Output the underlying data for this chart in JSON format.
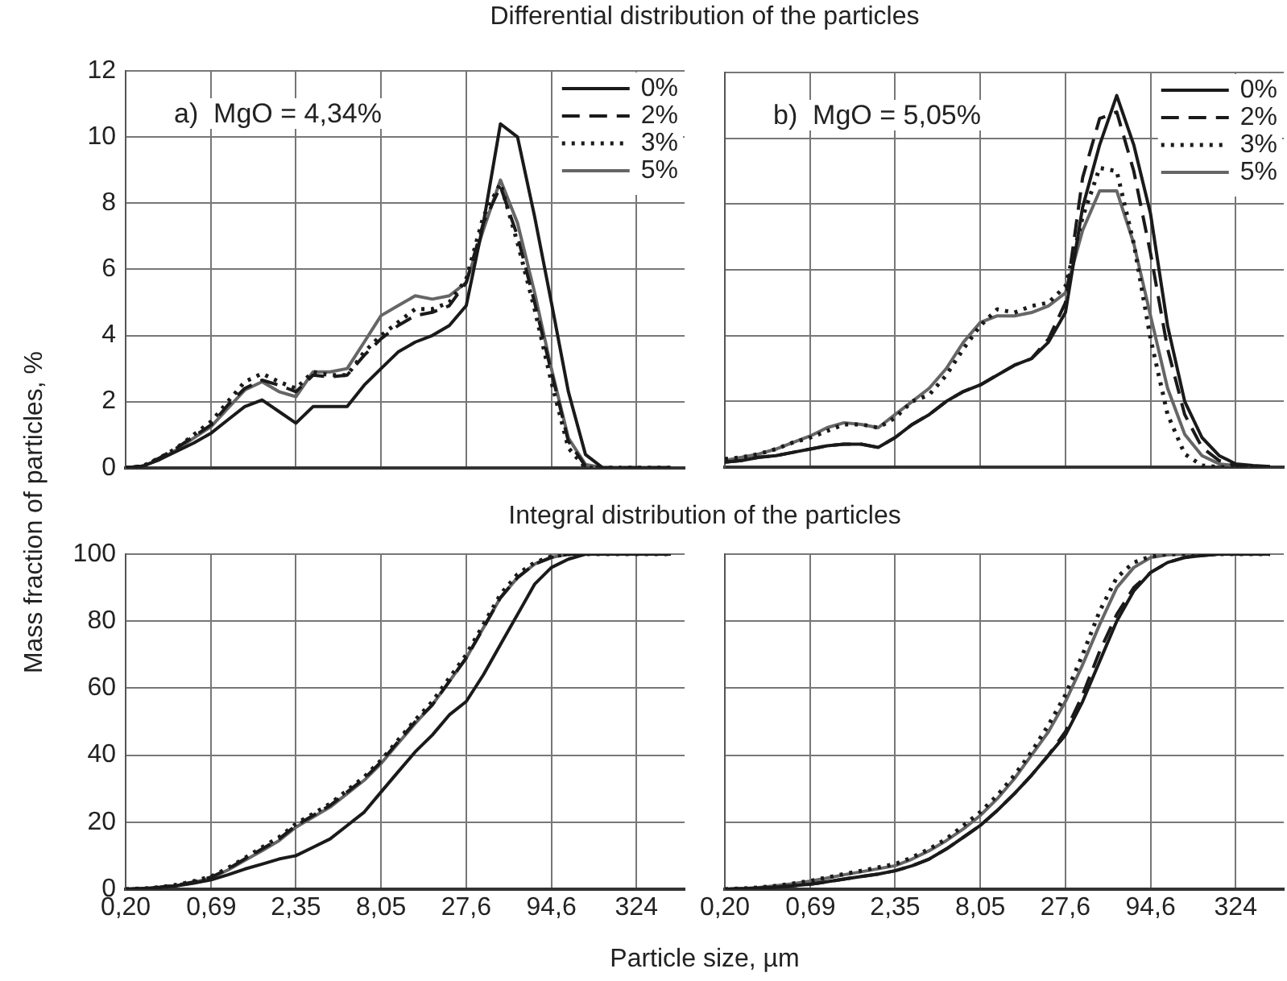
{
  "chart_data": [
    {
      "type": "line",
      "title": "Differential distribution of the particles",
      "ylabel": "Mass fraction of particles, %",
      "annotations": [
        "a)  MgO = 4,34%"
      ],
      "log": "x",
      "grid": true,
      "legend": "top right",
      "tick_labels": "y",
      "marker": "none",
      "x": [
        0.2,
        0.256,
        0.327,
        0.419,
        0.536,
        0.69,
        0.878,
        1.12,
        1.44,
        1.84,
        2.35,
        3.01,
        3.85,
        4.93,
        6.31,
        8.05,
        10.3,
        13.2,
        16.9,
        21.6,
        27.6,
        35.4,
        45.3,
        58,
        74.2,
        94.6,
        121,
        155,
        199,
        255,
        324,
        417,
        533
      ],
      "xlim": [
        0.2,
        650
      ],
      "ylim": [
        0,
        12
      ],
      "yticks": [
        0,
        2,
        4,
        6,
        8,
        10,
        12
      ],
      "series": [
        {
          "name": "0%",
          "color": "#1a1a1a",
          "line_style": "solid",
          "values": [
            0,
            0.05,
            0.25,
            0.5,
            0.75,
            1.05,
            1.45,
            1.85,
            2.05,
            1.7,
            1.35,
            1.85,
            1.85,
            1.85,
            2.5,
            3.0,
            3.5,
            3.8,
            4.0,
            4.3,
            4.9,
            7.4,
            10.4,
            10.0,
            7.6,
            5.0,
            2.3,
            0.4,
            0,
            0,
            0,
            0,
            0
          ]
        },
        {
          "name": "2%",
          "color": "#1a1a1a",
          "line_style": "dashed",
          "values": [
            0,
            0.05,
            0.3,
            0.6,
            0.95,
            1.3,
            1.9,
            2.4,
            2.65,
            2.5,
            2.3,
            2.8,
            2.75,
            2.8,
            3.4,
            3.9,
            4.3,
            4.6,
            4.7,
            4.9,
            5.6,
            7.4,
            8.5,
            7.0,
            5.0,
            2.9,
            0.8,
            0.05,
            0,
            0,
            0,
            0,
            0
          ]
        },
        {
          "name": "3%",
          "color": "#1a1a1a",
          "line_style": "dotted",
          "values": [
            0,
            0.05,
            0.3,
            0.6,
            1.0,
            1.4,
            2.0,
            2.6,
            2.85,
            2.6,
            2.4,
            2.9,
            2.8,
            2.8,
            3.5,
            4.0,
            4.4,
            4.8,
            4.8,
            5.0,
            5.7,
            7.6,
            8.6,
            6.8,
            4.8,
            2.6,
            0.6,
            0,
            0,
            0,
            0,
            0,
            0
          ]
        },
        {
          "name": "5%",
          "color": "#666666",
          "line_style": "solid",
          "values": [
            0,
            0.05,
            0.25,
            0.55,
            0.9,
            1.25,
            1.8,
            2.35,
            2.6,
            2.3,
            2.15,
            2.9,
            2.9,
            3.0,
            3.8,
            4.6,
            4.9,
            5.2,
            5.1,
            5.2,
            5.6,
            7.2,
            8.7,
            7.4,
            5.3,
            3.0,
            0.9,
            0.1,
            0,
            0,
            0,
            0,
            0
          ]
        }
      ]
    },
    {
      "type": "line",
      "annotations": [
        "b)  MgO = 5,05%"
      ],
      "log": "x",
      "grid": true,
      "legend": "top right",
      "tick_labels": false,
      "marker": "none",
      "x": [
        0.2,
        0.256,
        0.327,
        0.419,
        0.536,
        0.69,
        0.878,
        1.12,
        1.44,
        1.84,
        2.35,
        3.01,
        3.85,
        4.93,
        6.31,
        8.05,
        10.3,
        13.2,
        16.9,
        21.6,
        27.6,
        35.4,
        45.3,
        58,
        74.2,
        94.6,
        121,
        155,
        199,
        255,
        324,
        417,
        533
      ],
      "xlim": [
        0.2,
        650
      ],
      "ylim": [
        0,
        12
      ],
      "yticks": [
        0,
        2,
        4,
        6,
        8,
        10,
        12
      ],
      "series": [
        {
          "name": "0%",
          "color": "#1a1a1a",
          "line_style": "solid",
          "values": [
            0.15,
            0.2,
            0.3,
            0.35,
            0.45,
            0.55,
            0.65,
            0.7,
            0.7,
            0.6,
            0.9,
            1.3,
            1.6,
            2.0,
            2.3,
            2.5,
            2.8,
            3.1,
            3.3,
            3.8,
            4.7,
            7.9,
            9.8,
            11.3,
            9.8,
            7.7,
            4.3,
            2.0,
            0.9,
            0.35,
            0.1,
            0.05,
            0.02
          ]
        },
        {
          "name": "2%",
          "color": "#1a1a1a",
          "line_style": "dashed",
          "values": [
            0.15,
            0.2,
            0.3,
            0.35,
            0.45,
            0.55,
            0.65,
            0.7,
            0.7,
            0.6,
            0.9,
            1.3,
            1.6,
            2.0,
            2.3,
            2.5,
            2.8,
            3.1,
            3.3,
            3.9,
            5.0,
            8.8,
            10.6,
            10.8,
            9.0,
            6.5,
            3.6,
            1.6,
            0.6,
            0.2,
            0.05,
            0,
            0
          ]
        },
        {
          "name": "3%",
          "color": "#1a1a1a",
          "line_style": "dotted",
          "values": [
            0.25,
            0.3,
            0.4,
            0.55,
            0.75,
            0.9,
            1.1,
            1.3,
            1.3,
            1.2,
            1.5,
            2.0,
            2.2,
            2.8,
            3.6,
            4.3,
            4.8,
            4.7,
            4.9,
            5.0,
            5.5,
            7.6,
            9.1,
            9.0,
            6.8,
            3.9,
            1.6,
            0.4,
            0.05,
            0,
            0,
            0,
            0
          ]
        },
        {
          "name": "5%",
          "color": "#666666",
          "line_style": "solid",
          "values": [
            0.2,
            0.3,
            0.4,
            0.55,
            0.75,
            0.95,
            1.2,
            1.35,
            1.3,
            1.2,
            1.6,
            2.0,
            2.4,
            3.0,
            3.8,
            4.4,
            4.6,
            4.6,
            4.7,
            4.9,
            5.3,
            7.2,
            8.4,
            8.4,
            6.8,
            4.6,
            2.4,
            1.0,
            0.35,
            0.1,
            0.05,
            0,
            0
          ]
        }
      ]
    },
    {
      "type": "line",
      "title": "Integral distribution of the particles",
      "xlabel": "Particle size, µm",
      "log": "x",
      "grid": true,
      "marker": "none",
      "x": [
        0.2,
        0.256,
        0.327,
        0.419,
        0.536,
        0.69,
        0.878,
        1.12,
        1.44,
        1.84,
        2.35,
        3.01,
        3.85,
        4.93,
        6.31,
        8.05,
        10.3,
        13.2,
        16.9,
        21.6,
        27.6,
        35.4,
        45.3,
        58,
        74.2,
        94.6,
        121,
        155,
        199,
        255,
        324,
        417,
        533
      ],
      "xlim": [
        0.2,
        650
      ],
      "xticks": [
        {
          "value": 0.2,
          "label": "0,20"
        },
        {
          "value": 0.69,
          "label": "0,69"
        },
        {
          "value": 2.35,
          "label": "2,35"
        },
        {
          "value": 8.05,
          "label": "8,05"
        },
        {
          "value": 27.6,
          "label": "27,6"
        },
        {
          "value": 94.6,
          "label": "94,6"
        },
        {
          "value": 324,
          "label": "324"
        }
      ],
      "ylim": [
        0,
        100
      ],
      "yticks": [
        0,
        20,
        40,
        60,
        80,
        100
      ],
      "series": [
        {
          "color": "#1a1a1a",
          "line_style": "solid",
          "values": [
            0,
            0.2,
            0.5,
            1.0,
            1.8,
            2.8,
            4.3,
            6.0,
            7.5,
            9.0,
            10,
            12.5,
            15,
            19,
            23,
            29,
            35,
            41,
            46,
            52,
            56,
            64,
            73,
            82,
            91,
            96,
            98.5,
            100,
            100,
            100,
            100,
            100,
            100
          ]
        },
        {
          "color": "#1a1a1a",
          "line_style": "dashed",
          "values": [
            0,
            0.2,
            0.6,
            1.2,
            2.2,
            3.6,
            6.0,
            9.0,
            12,
            15,
            19,
            22,
            25,
            29,
            33,
            38,
            44,
            50,
            55,
            62,
            69,
            78,
            87,
            93,
            97,
            99,
            100,
            100,
            100,
            100,
            100,
            100,
            100
          ]
        },
        {
          "color": "#1a1a1a",
          "line_style": "dotted",
          "values": [
            0,
            0.2,
            0.6,
            1.3,
            2.4,
            3.8,
            6.3,
            9.3,
            12.5,
            15.5,
            19.5,
            22.5,
            25.5,
            29.5,
            33.5,
            38.5,
            44.5,
            50.5,
            56,
            63,
            70,
            79,
            88,
            94,
            97.5,
            99.3,
            100,
            100,
            100,
            100,
            100,
            100,
            100
          ]
        },
        {
          "color": "#666666",
          "line_style": "solid",
          "values": [
            0,
            0.2,
            0.5,
            1.1,
            2.0,
            3.4,
            5.7,
            8.6,
            11.5,
            14.5,
            18.5,
            21.5,
            24.5,
            28.5,
            32.5,
            37.5,
            43.5,
            49.5,
            55,
            62,
            69,
            78,
            87,
            93,
            97,
            99,
            100,
            100,
            100,
            100,
            100,
            100,
            100
          ]
        }
      ]
    },
    {
      "type": "line",
      "log": "x",
      "grid": true,
      "tick_labels": "x",
      "marker": "none",
      "x": [
        0.2,
        0.256,
        0.327,
        0.419,
        0.536,
        0.69,
        0.878,
        1.12,
        1.44,
        1.84,
        2.35,
        3.01,
        3.85,
        4.93,
        6.31,
        8.05,
        10.3,
        13.2,
        16.9,
        21.6,
        27.6,
        35.4,
        45.3,
        58,
        74.2,
        94.6,
        121,
        155,
        199,
        255,
        324,
        417,
        533
      ],
      "xlim": [
        0.2,
        650
      ],
      "xticks": [
        {
          "value": 0.2,
          "label": "0,20"
        },
        {
          "value": 0.69,
          "label": "0,69"
        },
        {
          "value": 2.35,
          "label": "2,35"
        },
        {
          "value": 8.05,
          "label": "8,05"
        },
        {
          "value": 27.6,
          "label": "27,6"
        },
        {
          "value": 94.6,
          "label": "94,6"
        },
        {
          "value": 324,
          "label": "324"
        }
      ],
      "ylim": [
        0,
        100
      ],
      "yticks": [
        0,
        20,
        40,
        60,
        80,
        100
      ],
      "series": [
        {
          "color": "#1a1a1a",
          "line_style": "solid",
          "values": [
            0,
            0.1,
            0.3,
            0.6,
            1.0,
            1.5,
            2.2,
            3.0,
            3.8,
            4.5,
            5.5,
            7,
            9,
            12,
            15.5,
            19,
            23.5,
            28.5,
            34,
            40,
            46,
            56,
            68,
            80,
            89,
            94.5,
            97.5,
            99,
            99.6,
            100,
            100,
            100,
            100
          ]
        },
        {
          "color": "#1a1a1a",
          "line_style": "dashed",
          "values": [
            0,
            0.1,
            0.3,
            0.6,
            1.0,
            1.5,
            2.2,
            3.0,
            3.8,
            4.5,
            5.5,
            7,
            9,
            12,
            15.5,
            19,
            23.5,
            28.5,
            34,
            40,
            47,
            58,
            71,
            82,
            90,
            94.5,
            97.5,
            99,
            99.6,
            100,
            100,
            100,
            100
          ]
        },
        {
          "color": "#1a1a1a",
          "line_style": "dotted",
          "values": [
            0,
            0.2,
            0.5,
            1.0,
            1.7,
            2.5,
            3.5,
            4.5,
            5.5,
            6.5,
            7.5,
            9.5,
            12,
            15,
            19,
            23,
            28,
            34,
            41,
            49,
            58,
            70,
            83,
            93,
            97.5,
            99.3,
            100,
            100,
            100,
            100,
            100,
            100,
            100
          ]
        },
        {
          "color": "#666666",
          "line_style": "solid",
          "values": [
            0,
            0.2,
            0.5,
            1.0,
            1.6,
            2.4,
            3.3,
            4.3,
            5.2,
            6.1,
            7,
            9,
            11.5,
            14.5,
            18,
            22,
            27,
            33,
            40,
            47,
            56,
            67,
            79,
            90,
            96,
            99,
            99.8,
            100,
            100,
            100,
            100,
            100,
            100
          ]
        }
      ]
    }
  ]
}
